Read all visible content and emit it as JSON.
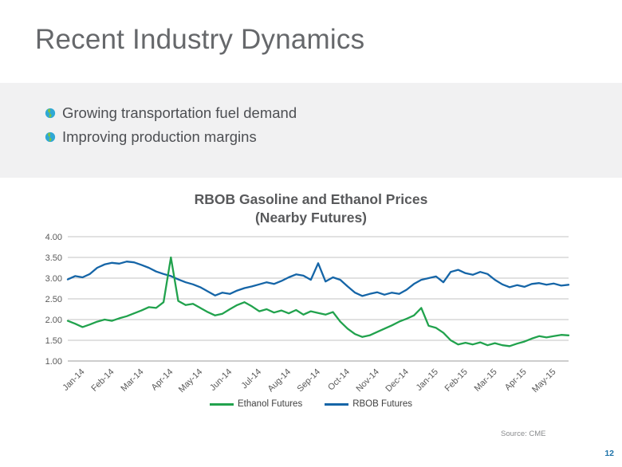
{
  "title": "Recent Industry Dynamics",
  "bullets": [
    "Growing transportation fuel demand",
    "Improving production margins"
  ],
  "source": "Source: CME",
  "page_number": "12",
  "colors": {
    "title_text": "#66686B",
    "band_background": "#F1F1F2",
    "page_number": "#1E73A9",
    "ethanol_green": "#21A24D",
    "rbob_blue": "#1565A7",
    "bullet_icon_blue": "#2FA8D5",
    "bullet_icon_green": "#7DC242"
  },
  "chart_data": {
    "type": "line",
    "title": "RBOB Gasoline and Ethanol Prices",
    "subtitle": "(Nearby Futures)",
    "xlabel": "",
    "ylabel": "",
    "ylim": [
      1.0,
      4.0
    ],
    "ytick_step": 0.5,
    "grid": true,
    "legend_position": "bottom",
    "x_sampling": "weekly (values estimated from plot)",
    "categories": [
      "Jan-14",
      "Feb-14",
      "Mar-14",
      "Apr-14",
      "May-14",
      "Jun-14",
      "Jul-14",
      "Aug-14",
      "Sep-14",
      "Oct-14",
      "Nov-14",
      "Dec-14",
      "Jan-15",
      "Feb-15",
      "Mar-15",
      "Apr-15",
      "May-15"
    ],
    "series": [
      {
        "name": "Ethanol Futures",
        "color": "#21A24D",
        "values": [
          1.97,
          1.9,
          1.82,
          1.88,
          1.95,
          2.0,
          1.97,
          2.03,
          2.08,
          2.15,
          2.22,
          2.3,
          2.28,
          2.42,
          3.5,
          2.45,
          2.35,
          2.38,
          2.28,
          2.18,
          2.1,
          2.14,
          2.25,
          2.35,
          2.42,
          2.32,
          2.2,
          2.25,
          2.17,
          2.22,
          2.15,
          2.23,
          2.12,
          2.2,
          2.16,
          2.12,
          2.18,
          1.95,
          1.78,
          1.65,
          1.58,
          1.62,
          1.7,
          1.78,
          1.86,
          1.95,
          2.02,
          2.1,
          2.28,
          1.85,
          1.8,
          1.68,
          1.5,
          1.4,
          1.44,
          1.4,
          1.45,
          1.38,
          1.43,
          1.38,
          1.36,
          1.42,
          1.47,
          1.54,
          1.6,
          1.57,
          1.6,
          1.63,
          1.62
        ]
      },
      {
        "name": "RBOB Futures",
        "color": "#1565A7",
        "values": [
          2.97,
          3.05,
          3.02,
          3.1,
          3.25,
          3.33,
          3.37,
          3.35,
          3.4,
          3.38,
          3.32,
          3.25,
          3.16,
          3.1,
          3.05,
          2.97,
          2.9,
          2.85,
          2.78,
          2.68,
          2.58,
          2.65,
          2.62,
          2.7,
          2.76,
          2.8,
          2.85,
          2.9,
          2.86,
          2.93,
          3.02,
          3.09,
          3.06,
          2.96,
          3.36,
          2.92,
          3.02,
          2.96,
          2.8,
          2.65,
          2.57,
          2.62,
          2.66,
          2.6,
          2.65,
          2.62,
          2.72,
          2.86,
          2.96,
          3.0,
          3.04,
          2.9,
          3.15,
          3.2,
          3.12,
          3.08,
          3.15,
          3.1,
          2.96,
          2.85,
          2.78,
          2.83,
          2.79,
          2.86,
          2.88,
          2.84,
          2.87,
          2.82,
          2.84
        ]
      }
    ]
  }
}
